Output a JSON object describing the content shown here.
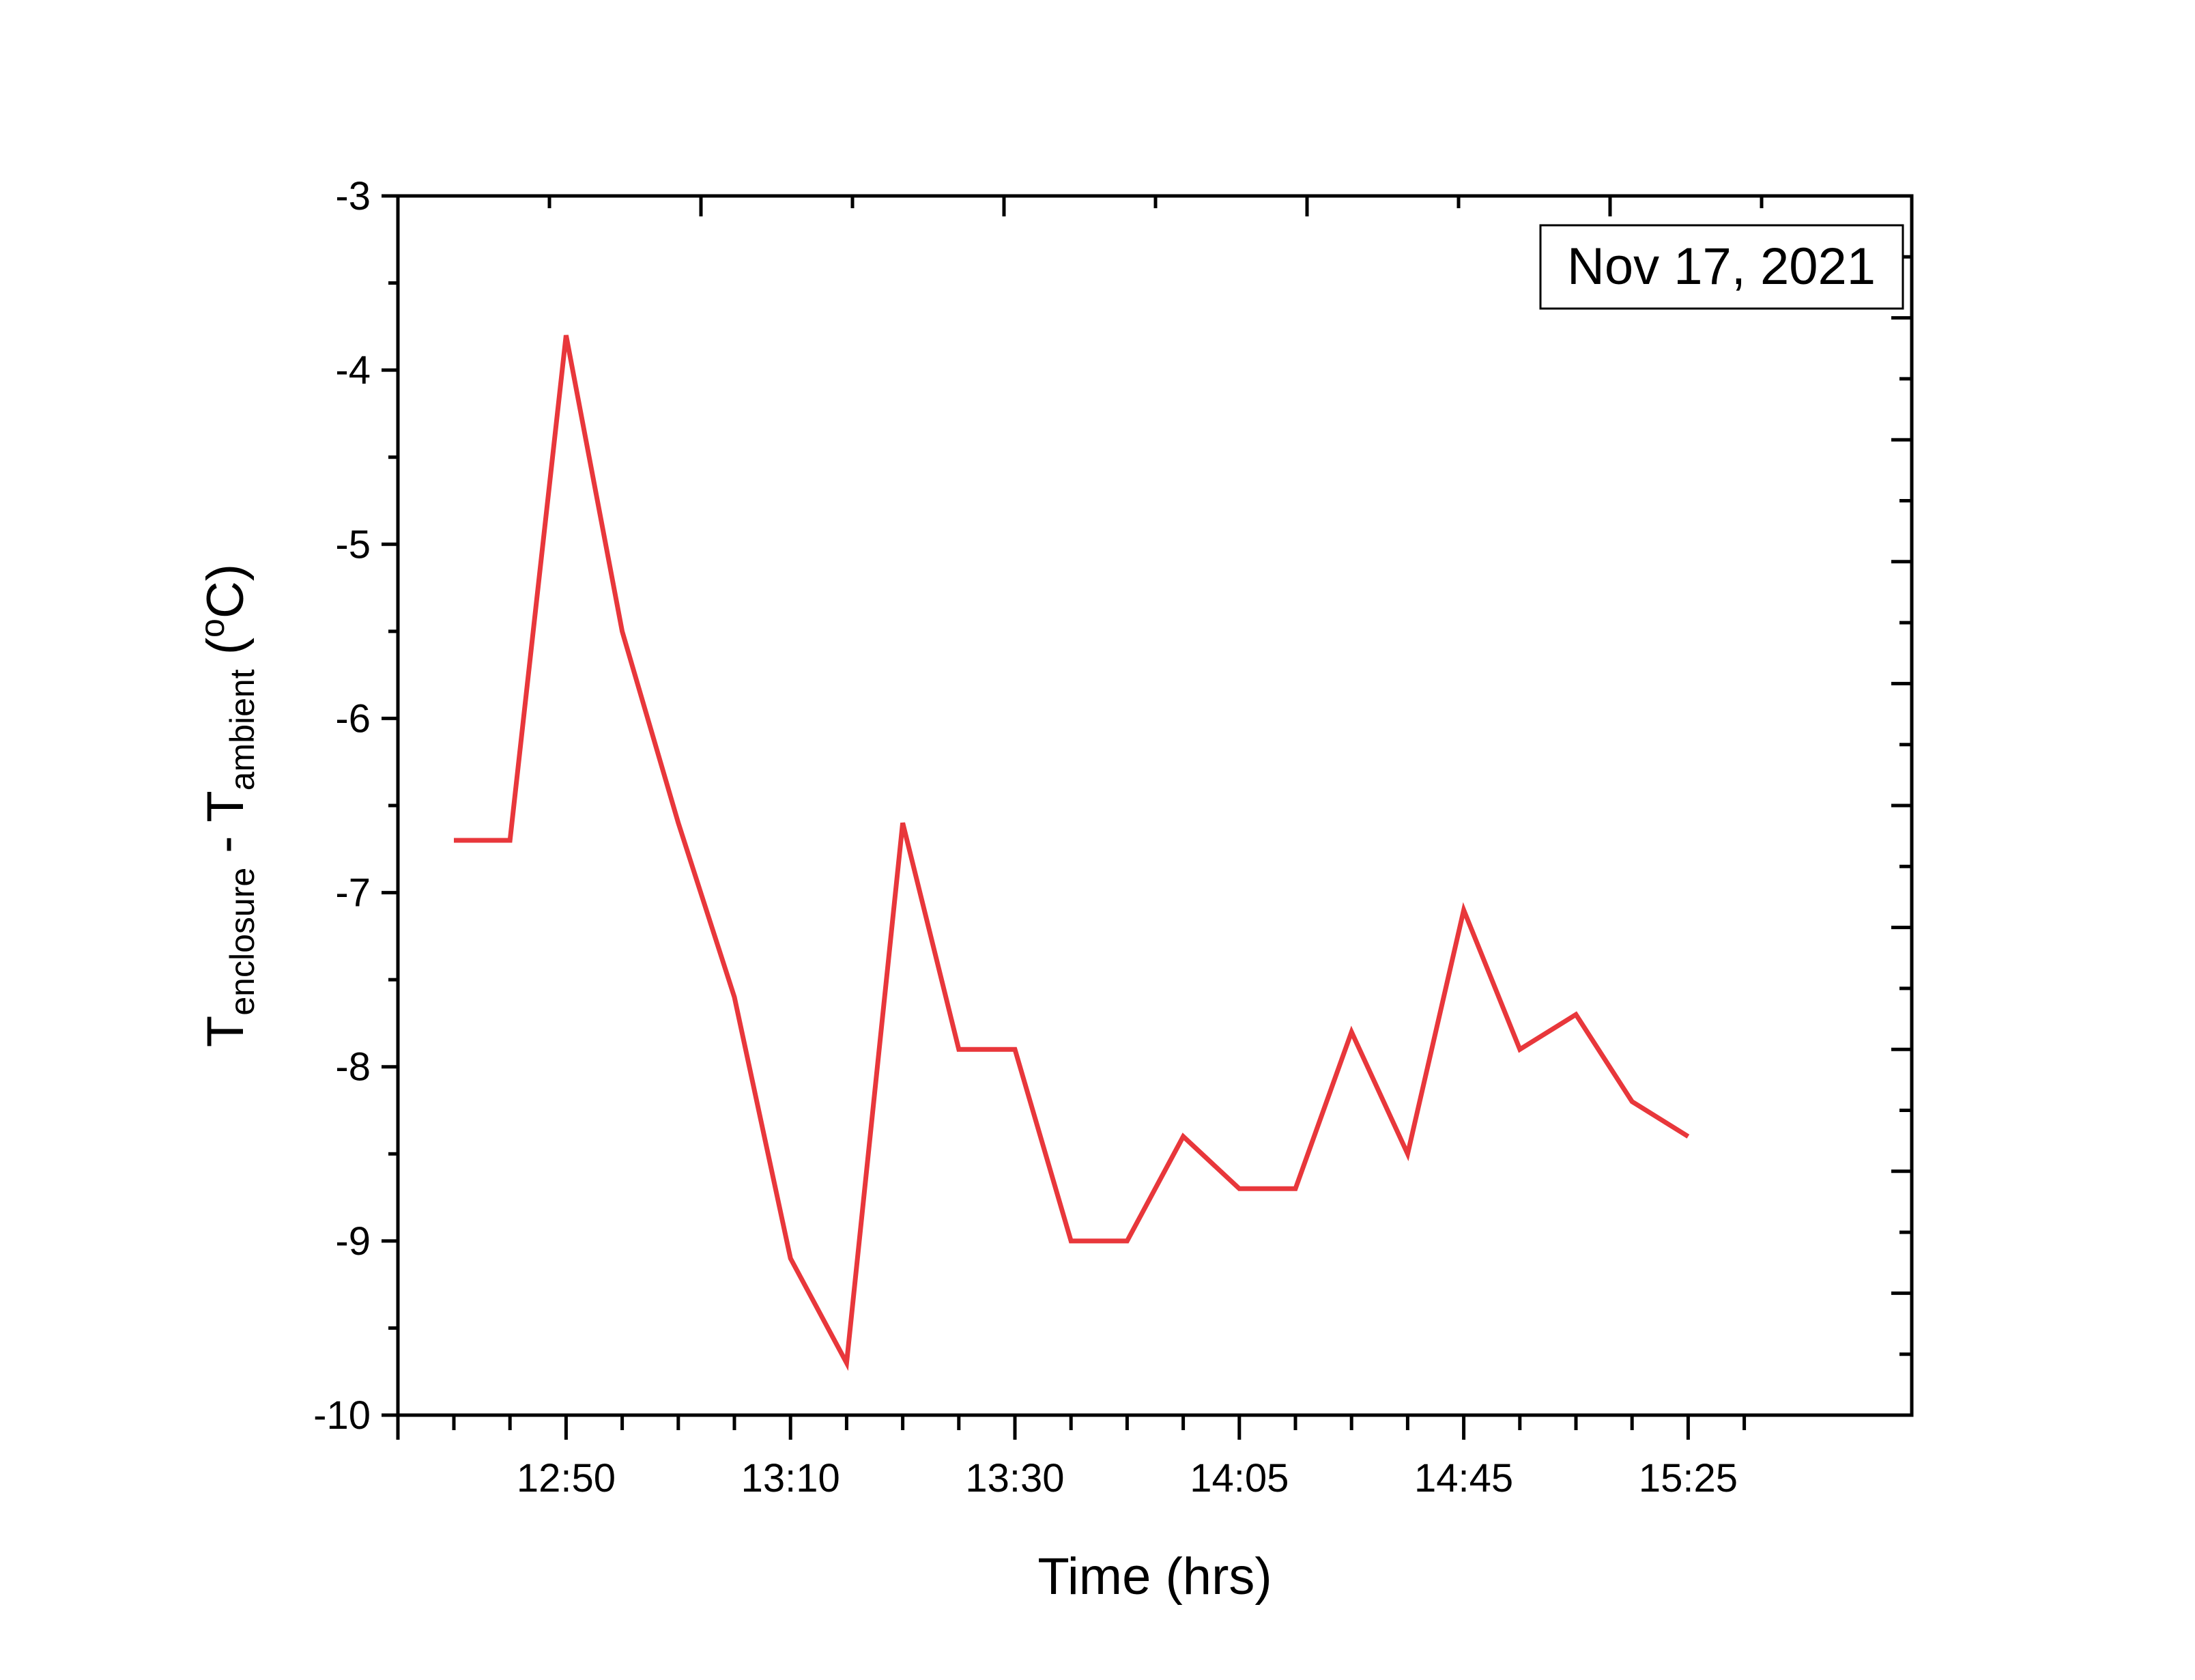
{
  "chart_data": {
    "type": "line",
    "xlabel": "Time (hrs)",
    "ylabel": {
      "main": "T",
      "sub1": "enclosure",
      "mid": " - T",
      "sub2": "ambient",
      "unit_open": " (",
      "unit_sup": "o",
      "unit_close": "C)"
    },
    "annotation": "Nov 17, 2021",
    "ylim": [
      -10,
      -3
    ],
    "yticks": [
      -3,
      -4,
      -5,
      -6,
      -7,
      -8,
      -9,
      -10
    ],
    "x_tick_labels": [
      "12:50",
      "13:10",
      "13:30",
      "14:05",
      "14:45",
      "15:25"
    ],
    "grid": false,
    "series": [
      {
        "color": "#e8373b",
        "x": [
          "12:40",
          "12:45",
          "12:50",
          "12:55",
          "13:00",
          "13:05",
          "13:10",
          "13:15",
          "13:20",
          "13:25",
          "13:30",
          "13:40",
          "13:50",
          "13:55",
          "14:05",
          "14:15",
          "14:25",
          "14:35",
          "14:45",
          "14:55",
          "15:05",
          "15:15",
          "15:25"
        ],
        "values": [
          -6.7,
          -6.7,
          -3.8,
          -5.5,
          -6.6,
          -7.6,
          -9.1,
          -9.7,
          -6.6,
          -7.9,
          -7.9,
          -9.0,
          -9.0,
          -8.4,
          -8.7,
          -8.7,
          -7.8,
          -8.5,
          -7.1,
          -7.9,
          -7.7,
          -8.2,
          -8.4
        ]
      }
    ]
  }
}
